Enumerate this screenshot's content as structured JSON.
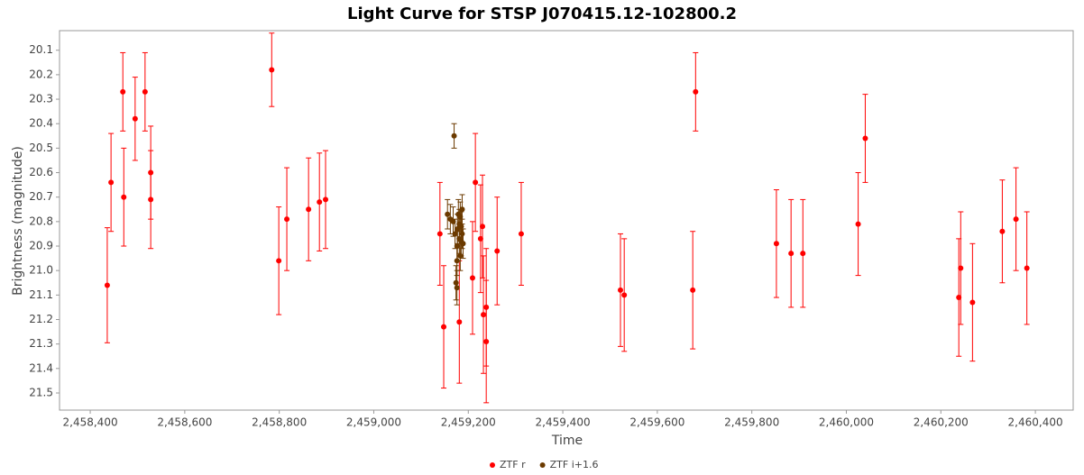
{
  "chart_data": {
    "type": "scatter",
    "title": "Light Curve for STSP J070415.12-102800.2",
    "x_label": "Time",
    "y_label": "Brightness (magnitude)",
    "y_inverted": true,
    "grid": false,
    "legend": "bottom",
    "xlim": [
      2458335,
      2460480
    ],
    "ylim": [
      20.02,
      21.57
    ],
    "xticks": [
      {
        "value": 2458400,
        "label": "2,458,400"
      },
      {
        "value": 2458600,
        "label": "2,458,600"
      },
      {
        "value": 2458800,
        "label": "2,458,800"
      },
      {
        "value": 2459000,
        "label": "2,459,000"
      },
      {
        "value": 2459200,
        "label": "2,459,200"
      },
      {
        "value": 2459400,
        "label": "2,459,400"
      },
      {
        "value": 2459600,
        "label": "2,459,600"
      },
      {
        "value": 2459800,
        "label": "2,459,800"
      },
      {
        "value": 2460000,
        "label": "2,460,000"
      },
      {
        "value": 2460200,
        "label": "2,460,200"
      },
      {
        "value": 2460400,
        "label": "2,460,400"
      }
    ],
    "yticks": [
      20.1,
      20.2,
      20.3,
      20.4,
      20.5,
      20.6,
      20.7,
      20.8,
      20.9,
      {
        "value": 21,
        "label": "21.0"
      },
      21.1,
      21.2,
      21.3,
      21.4,
      21.5
    ],
    "series": [
      {
        "name": "ZTF r",
        "color": "#ff0000",
        "x": [
          2458436,
          2458444,
          2458469,
          2458471,
          2458495,
          2458516,
          2458528,
          2458528,
          2458784,
          2458799,
          2458816,
          2458862,
          2458885,
          2458898,
          2459140,
          2459148,
          2459181,
          2459209,
          2459215,
          2459226,
          2459230,
          2459232,
          2459238,
          2459238,
          2459261,
          2459312,
          2459522,
          2459530,
          2459675,
          2459681,
          2459852,
          2459883,
          2459908,
          2460025,
          2460040,
          2460238,
          2460242,
          2460267,
          2460330,
          2460359,
          2460382
        ],
        "values": [
          21.06,
          20.64,
          20.27,
          20.7,
          20.38,
          20.27,
          20.6,
          20.71,
          20.18,
          20.96,
          20.79,
          20.75,
          20.72,
          20.71,
          20.85,
          21.23,
          21.21,
          21.03,
          20.64,
          20.87,
          20.82,
          21.18,
          21.15,
          21.29,
          20.92,
          20.85,
          21.08,
          21.1,
          21.08,
          20.27,
          20.89,
          20.93,
          20.93,
          20.81,
          20.46,
          21.11,
          20.99,
          21.13,
          20.84,
          20.79,
          20.99
        ],
        "errors": [
          0.235,
          0.2,
          0.16,
          0.2,
          0.17,
          0.16,
          0.19,
          0.2,
          0.15,
          0.22,
          0.21,
          0.21,
          0.2,
          0.2,
          0.21,
          0.25,
          0.25,
          0.23,
          0.2,
          0.22,
          0.21,
          0.24,
          0.24,
          0.25,
          0.22,
          0.21,
          0.23,
          0.23,
          0.24,
          0.16,
          0.22,
          0.22,
          0.22,
          0.21,
          0.18,
          0.24,
          0.23,
          0.24,
          0.21,
          0.21,
          0.23
        ]
      },
      {
        "name": "ZTF i+1.6",
        "color": "#6b3a00",
        "x": [
          2459156,
          2459162,
          2459168,
          2459170,
          2459172,
          2459174,
          2459176,
          2459177,
          2459177,
          2459179,
          2459181,
          2459181,
          2459183,
          2459183,
          2459185,
          2459185,
          2459187,
          2459187,
          2459189,
          2459176
        ],
        "values": [
          20.77,
          20.79,
          20.8,
          20.45,
          20.85,
          21.05,
          20.96,
          20.9,
          20.83,
          20.77,
          20.87,
          20.81,
          20.94,
          20.78,
          20.88,
          20.82,
          20.85,
          20.75,
          20.89,
          21.07
        ],
        "errors": [
          0.06,
          0.06,
          0.06,
          0.05,
          0.06,
          0.07,
          0.06,
          0.06,
          0.06,
          0.06,
          0.06,
          0.06,
          0.06,
          0.06,
          0.06,
          0.06,
          0.06,
          0.06,
          0.06,
          0.07
        ]
      }
    ]
  }
}
